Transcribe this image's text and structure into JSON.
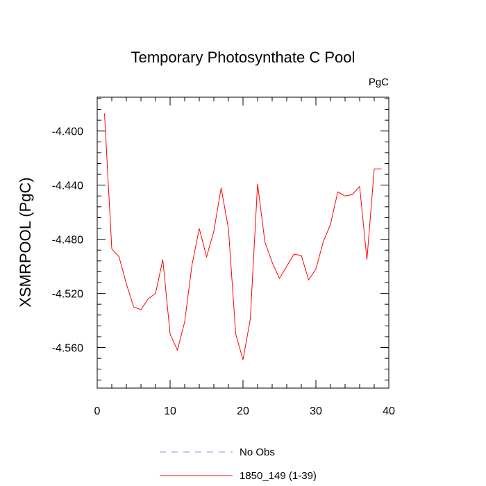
{
  "chart_data": {
    "type": "line",
    "title": "Temporary Photosynthate C Pool",
    "units": "PgC",
    "xlabel": "",
    "ylabel": "XSMRPOOL  (PgC)",
    "xlim": [
      0,
      40
    ],
    "ylim": [
      -4.59,
      -4.375
    ],
    "x_ticks": [
      0,
      10,
      20,
      30,
      40
    ],
    "x_tick_labels": [
      "0",
      "10",
      "20",
      "30",
      "40"
    ],
    "y_ticks": [
      -4.4,
      -4.44,
      -4.48,
      -4.52,
      -4.56
    ],
    "y_tick_labels": [
      "-4.400",
      "-4.440",
      "-4.480",
      "-4.520",
      "-4.560"
    ],
    "grid": false,
    "legend_position": "bottom",
    "legend": [
      {
        "label": "No Obs",
        "color": "#8c8cf0",
        "style": "dashed"
      },
      {
        "label": "1850_149 (1-39)",
        "color": "#ff0000",
        "style": "solid"
      }
    ],
    "series": [
      {
        "name": "1850_149 (1-39)",
        "color": "#ff0000",
        "x": [
          1,
          2,
          3,
          4,
          5,
          6,
          7,
          8,
          9,
          10,
          11,
          12,
          13,
          14,
          15,
          16,
          17,
          18,
          19,
          20,
          21,
          22,
          23,
          24,
          25,
          26,
          27,
          28,
          29,
          30,
          31,
          32,
          33,
          34,
          35,
          36,
          37,
          38,
          39
        ],
        "values": [
          -4.387,
          -4.487,
          -4.493,
          -4.513,
          -4.53,
          -4.532,
          -4.524,
          -4.52,
          -4.495,
          -4.55,
          -4.562,
          -4.541,
          -4.499,
          -4.472,
          -4.493,
          -4.474,
          -4.442,
          -4.472,
          -4.55,
          -4.569,
          -4.539,
          -4.439,
          -4.482,
          -4.497,
          -4.509,
          -4.5,
          -4.491,
          -4.492,
          -4.51,
          -4.502,
          -4.482,
          -4.469,
          -4.445,
          -4.448,
          -4.447,
          -4.441,
          -4.495,
          -4.428,
          -4.428
        ]
      }
    ]
  }
}
